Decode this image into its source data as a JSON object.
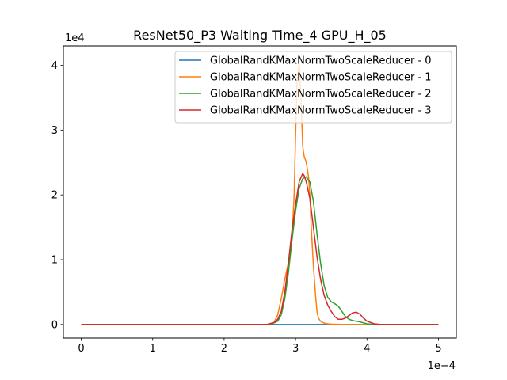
{
  "chart_data": {
    "type": "line",
    "title": "ResNet50_P3 Waiting Time_4 GPU_H_05",
    "xlabel": "",
    "ylabel": "",
    "x_multiplier_label": "1e−4",
    "y_multiplier_label": "1e4",
    "xlim": [
      -0.25,
      5.25
    ],
    "ylim": [
      -0.21,
      4.3
    ],
    "x_ticks": [
      0,
      1,
      2,
      3,
      4,
      5
    ],
    "x_tick_labels": [
      "0",
      "1",
      "2",
      "3",
      "4",
      "5"
    ],
    "y_ticks": [
      0,
      1,
      2,
      3,
      4
    ],
    "y_tick_labels": [
      "0",
      "1",
      "2",
      "3",
      "4"
    ],
    "grid": false,
    "legend_position": "top-right",
    "series": [
      {
        "name": "GlobalRandKMaxNormTwoScaleReducer - 0",
        "color": "#1f77b4",
        "x": [
          0,
          5
        ],
        "y": [
          0,
          0
        ]
      },
      {
        "name": "GlobalRandKMaxNormTwoScaleReducer - 1",
        "color": "#ff7f0e",
        "x": [
          0,
          2.6,
          2.7,
          2.75,
          2.8,
          2.85,
          2.9,
          2.95,
          2.98,
          3.0,
          3.02,
          3.05,
          3.08,
          3.1,
          3.12,
          3.15,
          3.18,
          3.2,
          3.22,
          3.25,
          3.28,
          3.3,
          3.32,
          3.35,
          3.38,
          3.4,
          3.45,
          3.5,
          3.6,
          3.7,
          5
        ],
        "y": [
          0,
          0,
          0.03,
          0.15,
          0.4,
          0.7,
          0.95,
          1.3,
          2.0,
          2.9,
          3.7,
          4.05,
          3.4,
          2.75,
          2.6,
          2.5,
          2.3,
          2.0,
          1.5,
          0.9,
          0.45,
          0.2,
          0.1,
          0.05,
          0.03,
          0.02,
          0.01,
          0.005,
          0.002,
          0,
          0
        ]
      },
      {
        "name": "GlobalRandKMaxNormTwoScaleReducer - 2",
        "color": "#2ca02c",
        "x": [
          0,
          2.65,
          2.75,
          2.8,
          2.85,
          2.9,
          2.95,
          3.0,
          3.05,
          3.1,
          3.15,
          3.2,
          3.25,
          3.3,
          3.35,
          3.4,
          3.45,
          3.5,
          3.55,
          3.6,
          3.65,
          3.7,
          3.75,
          3.8,
          3.9,
          4.0,
          4.1,
          5
        ],
        "y": [
          0,
          0,
          0.05,
          0.15,
          0.4,
          0.8,
          1.3,
          1.75,
          2.1,
          2.25,
          2.28,
          2.2,
          1.9,
          1.4,
          0.95,
          0.6,
          0.42,
          0.35,
          0.32,
          0.28,
          0.2,
          0.12,
          0.08,
          0.06,
          0.04,
          0.01,
          0,
          0
        ]
      },
      {
        "name": "GlobalRandKMaxNormTwoScaleReducer - 3",
        "color": "#d62728",
        "x": [
          0,
          2.6,
          2.7,
          2.75,
          2.8,
          2.85,
          2.9,
          2.95,
          3.0,
          3.05,
          3.1,
          3.12,
          3.15,
          3.2,
          3.25,
          3.3,
          3.35,
          3.4,
          3.45,
          3.5,
          3.55,
          3.6,
          3.65,
          3.7,
          3.75,
          3.8,
          3.85,
          3.9,
          3.95,
          4.0,
          4.1,
          4.2,
          5
        ],
        "y": [
          0,
          0,
          0.03,
          0.08,
          0.2,
          0.5,
          0.95,
          1.45,
          1.85,
          2.2,
          2.33,
          2.3,
          2.2,
          1.95,
          1.5,
          1.05,
          0.7,
          0.45,
          0.3,
          0.2,
          0.12,
          0.08,
          0.08,
          0.1,
          0.14,
          0.18,
          0.19,
          0.16,
          0.1,
          0.05,
          0.01,
          0,
          0
        ]
      }
    ]
  }
}
